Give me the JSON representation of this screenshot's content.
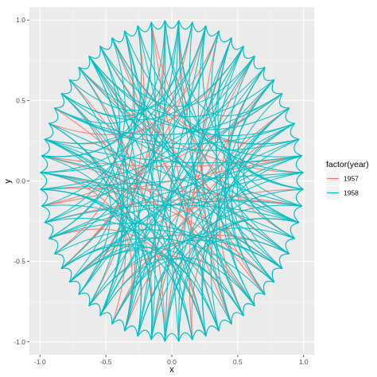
{
  "chart_data": {
    "type": "line",
    "title": "",
    "xlabel": "x",
    "ylabel": "y",
    "xlim": [
      -1.08,
      1.08
    ],
    "ylim": [
      -1.08,
      1.08
    ],
    "x_ticks": [
      -1.0,
      -0.5,
      0.0,
      0.5,
      1.0
    ],
    "y_ticks": [
      -1.0,
      -0.5,
      0.0,
      0.5,
      1.0
    ],
    "x_tick_labels": [
      "-1.0",
      "-0.5",
      "0.0",
      "0.5",
      "1.0"
    ],
    "y_tick_labels": [
      "-1.0",
      "-0.5",
      "0.0",
      "0.5",
      "1.0"
    ],
    "grid": true,
    "panel_background": "#ebebeb",
    "legend": {
      "title": "factor(year)",
      "placement": "right",
      "entries": [
        {
          "label": "1957",
          "color": "#F8766D"
        },
        {
          "label": "1958",
          "color": "#00BFC4"
        }
      ]
    },
    "layout": "circular edge bundling diagram of curved links between nodes on the unit circle",
    "node_count": 60,
    "series": [
      {
        "name": "1957",
        "color": "#F8766D",
        "edges": [
          [
            2,
            19
          ],
          [
            5,
            31
          ],
          [
            8,
            44
          ],
          [
            11,
            27
          ],
          [
            14,
            52
          ],
          [
            17,
            38
          ],
          [
            20,
            55
          ],
          [
            23,
            47
          ],
          [
            26,
            9
          ],
          [
            29,
            41
          ],
          [
            32,
            58
          ],
          [
            35,
            12
          ],
          [
            38,
            50
          ],
          [
            41,
            3
          ],
          [
            44,
            22
          ],
          [
            47,
            33
          ],
          [
            50,
            7
          ],
          [
            53,
            29
          ],
          [
            56,
            16
          ],
          [
            59,
            36
          ],
          [
            4,
            40
          ],
          [
            10,
            46
          ],
          [
            16,
            48
          ],
          [
            22,
            0
          ],
          [
            28,
            54
          ],
          [
            34,
            18
          ],
          [
            40,
            26
          ],
          [
            46,
            57
          ],
          [
            52,
            21
          ],
          [
            58,
            30
          ],
          [
            6,
            43
          ],
          [
            13,
            35
          ],
          [
            19,
            49
          ],
          [
            25,
            51
          ],
          [
            31,
            1
          ],
          [
            37,
            15
          ],
          [
            43,
            24
          ],
          [
            49,
            11
          ],
          [
            55,
            39
          ],
          [
            1,
            28
          ]
        ]
      },
      {
        "name": "1958",
        "color": "#00BFC4",
        "edges": [
          [
            0,
            17
          ],
          [
            1,
            33
          ],
          [
            2,
            45
          ],
          [
            3,
            21
          ],
          [
            4,
            52
          ],
          [
            5,
            14
          ],
          [
            6,
            38
          ],
          [
            7,
            29
          ],
          [
            8,
            56
          ],
          [
            9,
            24
          ],
          [
            10,
            41
          ],
          [
            11,
            35
          ],
          [
            12,
            50
          ],
          [
            13,
            27
          ],
          [
            14,
            44
          ],
          [
            15,
            59
          ],
          [
            16,
            31
          ],
          [
            17,
            48
          ],
          [
            18,
            36
          ],
          [
            19,
            53
          ],
          [
            20,
            8
          ],
          [
            21,
            39
          ],
          [
            22,
            57
          ],
          [
            23,
            12
          ],
          [
            24,
            46
          ],
          [
            25,
            3
          ],
          [
            26,
            42
          ],
          [
            27,
            55
          ],
          [
            28,
            16
          ],
          [
            29,
            47
          ],
          [
            30,
            5
          ],
          [
            31,
            49
          ],
          [
            32,
            19
          ],
          [
            33,
            58
          ],
          [
            34,
            11
          ],
          [
            35,
            52
          ],
          [
            36,
            2
          ],
          [
            37,
            26
          ],
          [
            38,
            54
          ],
          [
            39,
            15
          ],
          [
            40,
            1
          ],
          [
            41,
            22
          ],
          [
            42,
            58
          ],
          [
            43,
            9
          ],
          [
            44,
            30
          ],
          [
            45,
            18
          ],
          [
            46,
            35
          ],
          [
            47,
            4
          ],
          [
            48,
            27
          ],
          [
            49,
            13
          ],
          [
            50,
            39
          ],
          [
            51,
            21
          ],
          [
            52,
            7
          ],
          [
            53,
            34
          ],
          [
            54,
            20
          ],
          [
            55,
            44
          ],
          [
            56,
            10
          ],
          [
            57,
            32
          ],
          [
            58,
            24
          ],
          [
            59,
            6
          ],
          [
            0,
            30
          ],
          [
            3,
            48
          ],
          [
            6,
            51
          ],
          [
            9,
            37
          ],
          [
            12,
            59
          ],
          [
            15,
            42
          ],
          [
            18,
            2
          ],
          [
            21,
            55
          ],
          [
            24,
            13
          ],
          [
            27,
            1
          ],
          [
            30,
            46
          ],
          [
            33,
            20
          ],
          [
            36,
            54
          ],
          [
            39,
            7
          ],
          [
            42,
            30
          ],
          [
            45,
            10
          ],
          [
            48,
            36
          ],
          [
            51,
            29
          ],
          [
            54,
            4
          ],
          [
            57,
            43
          ],
          [
            0,
            42
          ],
          [
            7,
            53
          ],
          [
            14,
            25
          ],
          [
            21,
            47
          ],
          [
            28,
            43
          ],
          [
            35,
            0
          ],
          [
            42,
            12
          ],
          [
            49,
            5
          ],
          [
            56,
            40
          ],
          [
            1,
            19
          ],
          [
            8,
            32
          ],
          [
            15,
            55
          ],
          [
            22,
            4
          ],
          [
            29,
            12
          ],
          [
            36,
            50
          ],
          [
            43,
            18
          ],
          [
            50,
            27
          ],
          [
            57,
            3
          ],
          [
            5,
            25
          ],
          [
            11,
            58
          ],
          [
            17,
            33
          ],
          [
            23,
            39
          ],
          [
            29,
            54
          ],
          [
            35,
            48
          ],
          [
            41,
            16
          ],
          [
            47,
            1
          ],
          [
            53,
            10
          ],
          [
            59,
            44
          ],
          [
            3,
            36
          ],
          [
            9,
            51
          ],
          [
            15,
            28
          ],
          [
            21,
            6
          ],
          [
            27,
            43
          ],
          [
            33,
            53
          ],
          [
            39,
            24
          ],
          [
            45,
            57
          ],
          [
            51,
            40
          ],
          [
            57,
            14
          ],
          [
            2,
            25
          ],
          [
            8,
            39
          ],
          [
            14,
            37
          ],
          [
            20,
            41
          ],
          [
            26,
            57
          ],
          [
            32,
            47
          ],
          [
            38,
            21
          ],
          [
            44,
            4
          ],
          [
            50,
            14
          ],
          [
            56,
            28
          ]
        ]
      }
    ]
  }
}
